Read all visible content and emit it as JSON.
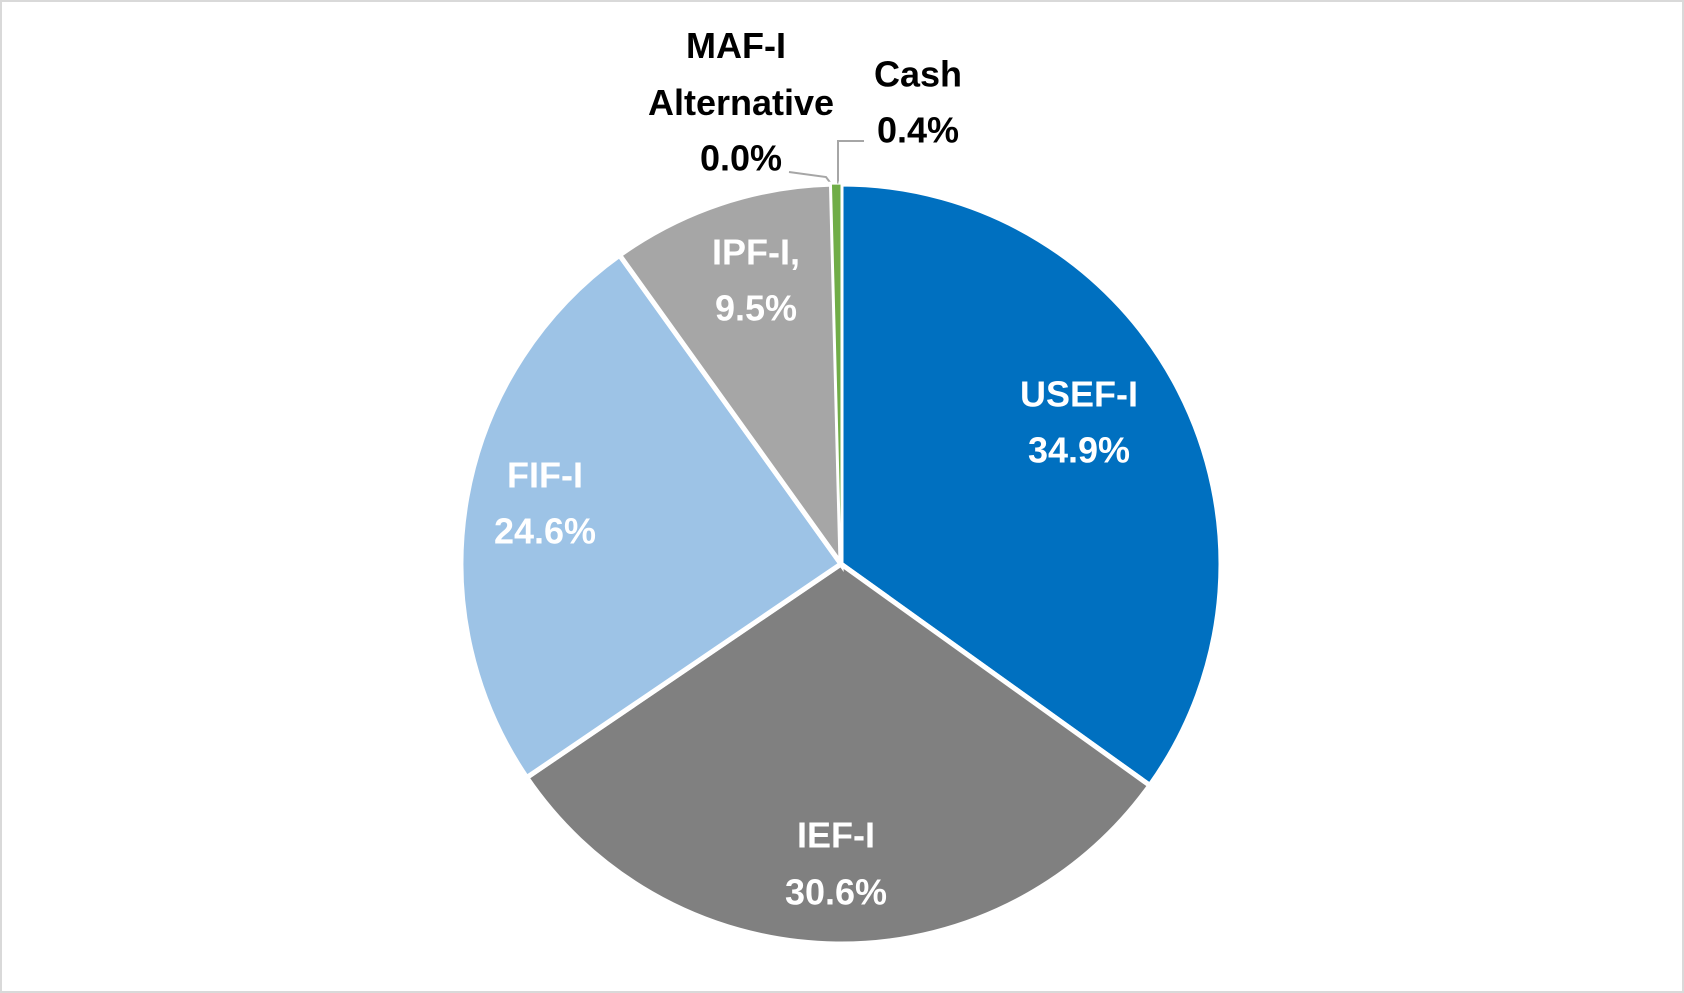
{
  "chart_data": {
    "type": "pie",
    "categories": [
      "USEF-I",
      "IEF-I",
      "FIF-I",
      "IPF-I,",
      "MAF-I Alternative",
      "Cash"
    ],
    "values": [
      34.9,
      30.6,
      24.6,
      9.5,
      0.0,
      0.4
    ],
    "value_labels": [
      "34.9%",
      "30.6%",
      "24.6%",
      "9.5%",
      "0.0%",
      "0.4%"
    ],
    "colors": [
      "#0070c0",
      "#808080",
      "#9dc3e6",
      "#a6a6a6",
      "#264478",
      "#70ad47"
    ]
  }
}
